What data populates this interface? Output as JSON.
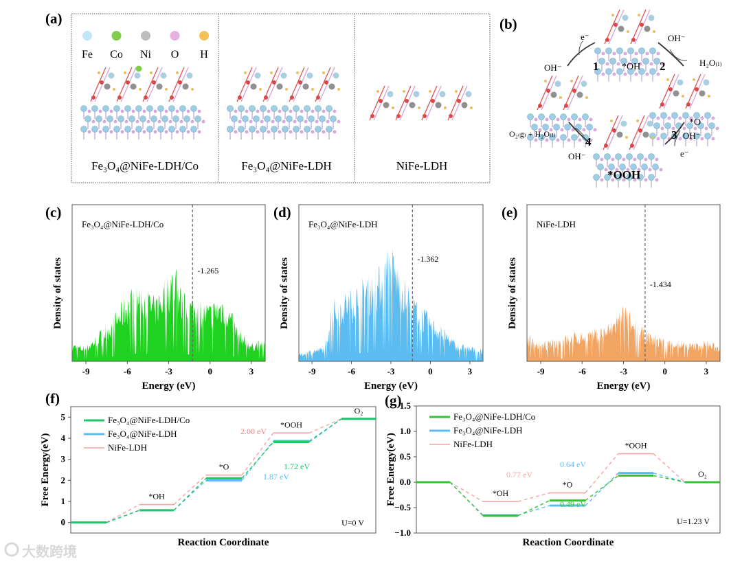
{
  "panel_labels": {
    "a": "(a)",
    "b": "(b)",
    "c": "(c)",
    "d": "(d)",
    "e": "(e)",
    "f": "(f)",
    "g": "(g)"
  },
  "panel_a": {
    "elements": [
      {
        "symbol": "Fe",
        "color": "#bfe6f7"
      },
      {
        "symbol": "Co",
        "color": "#7dcf4a"
      },
      {
        "symbol": "Ni",
        "color": "#bdbdbd"
      },
      {
        "symbol": "O",
        "color": "#e6b3e0"
      },
      {
        "symbol": "H",
        "color": "#f5c25a"
      }
    ],
    "structures": [
      "Fe₃O₄@NiFe-LDH/Co",
      "Fe₃O₄@NiFe-LDH",
      "NiFe-LDH"
    ]
  },
  "panel_b": {
    "states": {
      "oh": "*OH",
      "o": "*O",
      "ooh": "*OOH"
    },
    "steps": [
      "1",
      "2",
      "3",
      "4"
    ],
    "species": {
      "oh_minus": "OH⁻",
      "e_minus": "e⁻",
      "h2o": "H₂O₍ₗ₎",
      "o2_h2o": "O₂₍g₎ + H₂O₍ₗ₎"
    }
  },
  "chart_data": [
    {
      "id": "c",
      "type": "area",
      "title": "Fe₃O₄@NiFe-LDH/Co",
      "xlabel": "Energy (eV)",
      "ylabel": "Density of states",
      "xlim": [
        -10,
        4
      ],
      "ylim": [
        0,
        100
      ],
      "xticks": [
        -9,
        -6,
        -3,
        0,
        3
      ],
      "color": "#1fd21f",
      "d_band_center": -1.265,
      "d_band_label": "-1.265",
      "envelope_x": [
        -10,
        -9,
        -8,
        -7,
        -6,
        -5,
        -4,
        -3,
        -2.5,
        -2,
        -1,
        0,
        1,
        2,
        3,
        4
      ],
      "envelope_y": [
        12,
        10,
        20,
        30,
        45,
        52,
        42,
        60,
        64,
        45,
        42,
        38,
        45,
        22,
        12,
        15
      ]
    },
    {
      "id": "d",
      "type": "area",
      "title": "Fe₃O₄@NiFe-LDH",
      "xlabel": "Energy (eV)",
      "ylabel": "Density of states",
      "xlim": [
        -10,
        4
      ],
      "ylim": [
        0,
        100
      ],
      "xticks": [
        -9,
        -6,
        -3,
        0,
        3
      ],
      "color": "#5bbcf2",
      "d_band_center": -1.362,
      "d_band_label": "-1.362",
      "envelope_x": [
        -10,
        -9,
        -8,
        -7.5,
        -6,
        -5,
        -4,
        -3,
        -2,
        -1,
        0,
        1,
        2,
        3,
        4
      ],
      "envelope_y": [
        5,
        8,
        10,
        40,
        48,
        55,
        60,
        77,
        55,
        40,
        30,
        22,
        12,
        10,
        8
      ]
    },
    {
      "id": "e",
      "type": "area",
      "title": "NiFe-LDH",
      "xlabel": "Energy (eV)",
      "ylabel": "Density of states",
      "xlim": [
        -10,
        4
      ],
      "ylim": [
        0,
        100
      ],
      "xticks": [
        -9,
        -6,
        -3,
        0,
        3
      ],
      "color": "#f2a463",
      "d_band_center": -1.434,
      "d_band_label": "-1.434",
      "envelope_x": [
        -10,
        -9,
        -8,
        -7,
        -6,
        -5,
        -4,
        -3,
        -2,
        -1,
        0,
        1,
        2,
        3,
        4
      ],
      "envelope_y": [
        18,
        12,
        15,
        18,
        20,
        22,
        25,
        38,
        25,
        18,
        15,
        14,
        12,
        14,
        10
      ]
    },
    {
      "id": "f",
      "type": "line",
      "xlabel": "Reaction Coordinate",
      "ylabel": "Free Energy(eV)",
      "ylim": [
        -0.5,
        5.5
      ],
      "yticks": [
        0,
        1,
        2,
        3,
        4,
        5
      ],
      "condition": "U=0 V",
      "states": [
        "",
        "*OH",
        "*O",
        "*OOH",
        "O₂"
      ],
      "series": [
        {
          "name": "Fe₃O₄@NiFe-LDH/Co",
          "color": "#22c46a",
          "values": [
            0,
            0.58,
            2.1,
            3.82,
            4.92
          ]
        },
        {
          "name": "Fe₃O₄@NiFe-LDH",
          "color": "#5bbcf2",
          "values": [
            0,
            0.58,
            2.0,
            3.87,
            4.92
          ]
        },
        {
          "name": "NiFe-LDH",
          "color": "#f4a3a3",
          "values": [
            0,
            0.85,
            2.25,
            4.25,
            4.92
          ]
        }
      ],
      "annotations": [
        {
          "text": "2.00 eV",
          "color": "#f08080"
        },
        {
          "text": "1.72 eV",
          "color": "#22c46a"
        },
        {
          "text": "1.87 eV",
          "color": "#5bbcf2"
        }
      ]
    },
    {
      "id": "g",
      "type": "line",
      "xlabel": "Reaction Coordinate",
      "ylabel": "Free Energy(eV)",
      "ylim": [
        -1.0,
        1.5
      ],
      "yticks": [
        -1.0,
        -0.5,
        0.0,
        0.5,
        1.0,
        1.5
      ],
      "ytick_labels": [
        "−1.0",
        "−0.5",
        "0.0",
        "0.5",
        "1.0",
        "1.5"
      ],
      "condition": "U=1.23 V",
      "states": [
        "",
        "*OH",
        "*O",
        "*OOH",
        "O₂"
      ],
      "series": [
        {
          "name": "Fe₃O₄@NiFe-LDH/Co",
          "color": "#33c233",
          "values": [
            0,
            -0.66,
            -0.36,
            0.13,
            0
          ]
        },
        {
          "name": "Fe₃O₄@NiFe-LDH",
          "color": "#5bbcf2",
          "values": [
            0,
            -0.65,
            -0.46,
            0.18,
            0
          ]
        },
        {
          "name": "NiFe-LDH",
          "color": "#f4a3a3",
          "values": [
            0,
            -0.38,
            -0.21,
            0.56,
            0
          ]
        }
      ],
      "annotations": [
        {
          "text": "0.77 eV",
          "color": "#f4a3a3"
        },
        {
          "text": "0.64 eV",
          "color": "#5bbcf2"
        },
        {
          "text": "0.49 eV",
          "color": "#33c233"
        }
      ]
    }
  ],
  "watermark": "大数跨境"
}
